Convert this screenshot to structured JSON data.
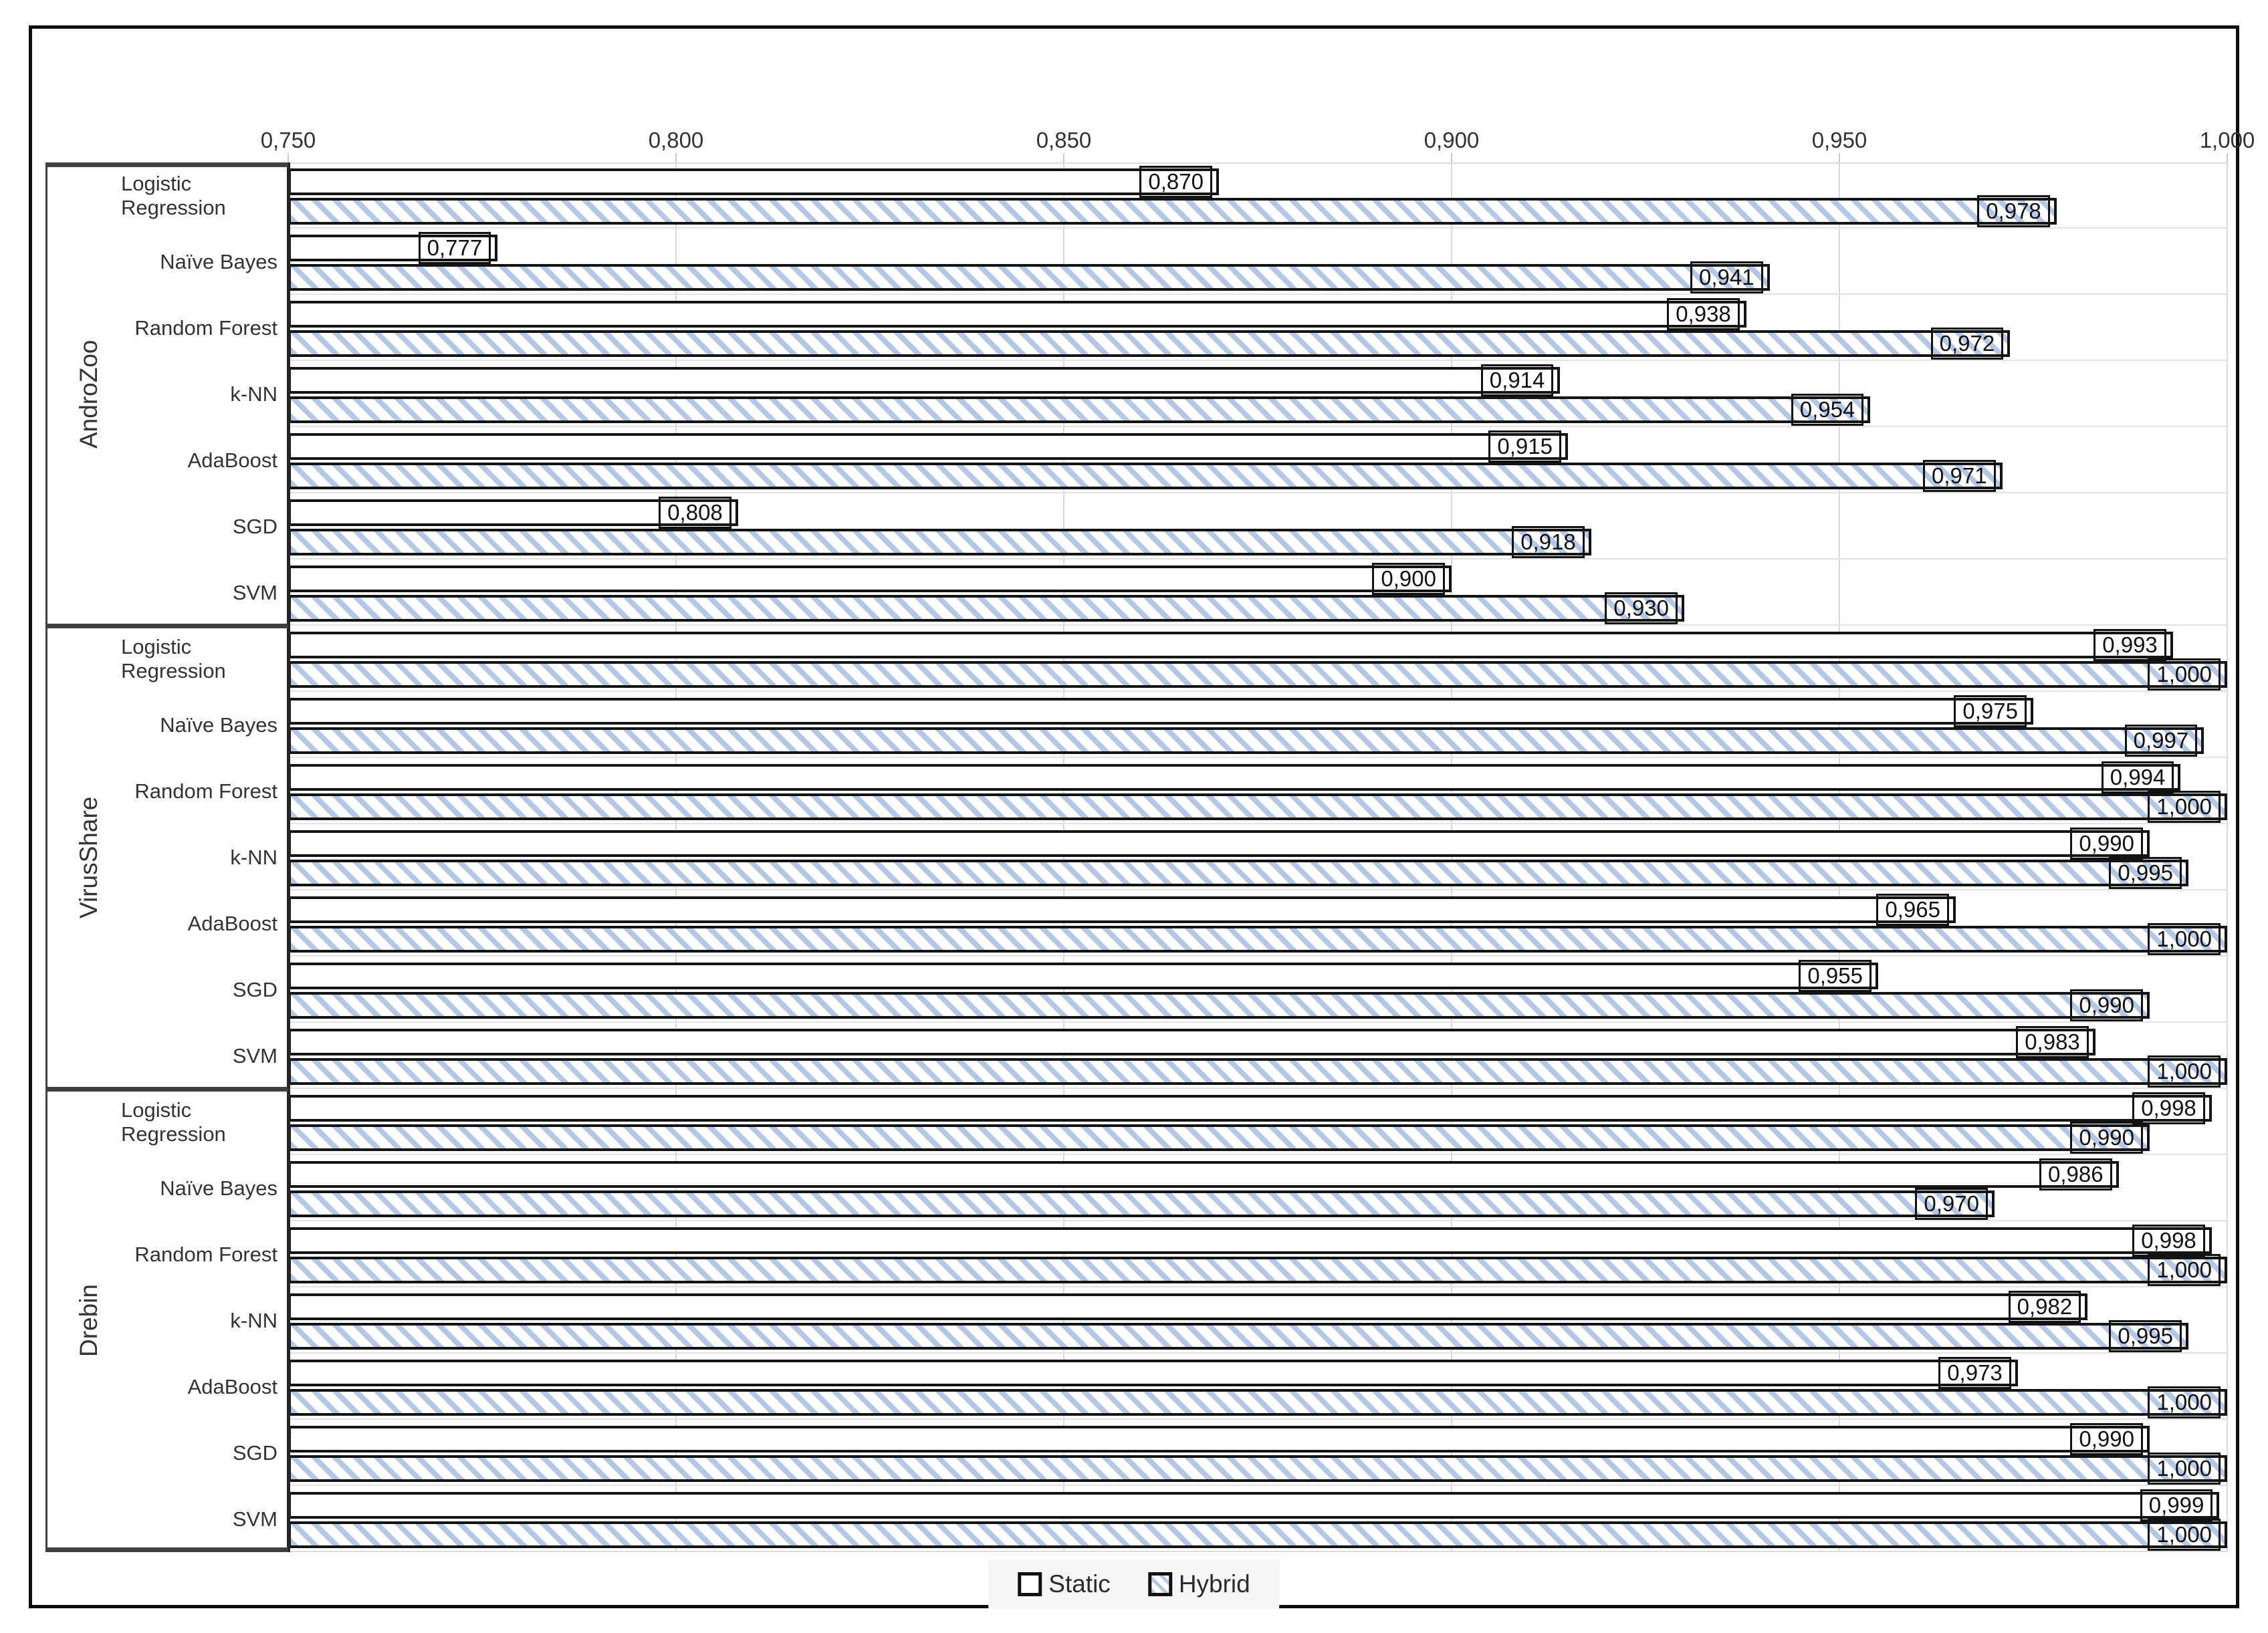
{
  "colors": {
    "hatch_blue": "#b4c7e7",
    "bar_border": "#141414",
    "gridline": "#d9d9d9",
    "row_line": "#e3e3e3",
    "group_divider": "#3f3f3f",
    "category_axis_line": "#262626",
    "frame_border": "#0d0d0d",
    "text": "#333333",
    "legend_background": "#f6f6f6"
  },
  "chart_data": {
    "type": "bar",
    "orientation": "horizontal",
    "value_axis": {
      "position": "top",
      "min": 0.75,
      "max": 1.0,
      "tick_step": 0.05,
      "tick_labels": [
        "0,750",
        "0,800",
        "0,850",
        "0,900",
        "0,950",
        "1,000"
      ],
      "number_format": "comma-decimal",
      "grid": true
    },
    "legend": {
      "position": "bottom",
      "items": [
        {
          "name": "Static",
          "style": "white-fill-black-border"
        },
        {
          "name": "Hybrid",
          "style": "blue-diagonal-hatch"
        }
      ]
    },
    "groups": [
      {
        "label": "AndroZoo",
        "rows": [
          {
            "classifier": "Logistic Regression",
            "static": {
              "value": 0.87,
              "label": "0,870"
            },
            "hybrid": {
              "value": 0.978,
              "label": "0,978"
            }
          },
          {
            "classifier": "Naïve Bayes",
            "static": {
              "value": 0.777,
              "label": "0,777"
            },
            "hybrid": {
              "value": 0.941,
              "label": "0,941"
            }
          },
          {
            "classifier": "Random Forest",
            "static": {
              "value": 0.938,
              "label": "0,938"
            },
            "hybrid": {
              "value": 0.972,
              "label": "0,972"
            }
          },
          {
            "classifier": "k-NN",
            "static": {
              "value": 0.914,
              "label": "0,914"
            },
            "hybrid": {
              "value": 0.954,
              "label": "0,954"
            }
          },
          {
            "classifier": "AdaBoost",
            "static": {
              "value": 0.915,
              "label": "0,915"
            },
            "hybrid": {
              "value": 0.971,
              "label": "0,971"
            }
          },
          {
            "classifier": "SGD",
            "static": {
              "value": 0.808,
              "label": "0,808"
            },
            "hybrid": {
              "value": 0.918,
              "label": "0,918"
            }
          },
          {
            "classifier": "SVM",
            "static": {
              "value": 0.9,
              "label": "0,900"
            },
            "hybrid": {
              "value": 0.93,
              "label": "0,930"
            }
          }
        ]
      },
      {
        "label": "VirusShare",
        "rows": [
          {
            "classifier": "Logistic Regression",
            "static": {
              "value": 0.993,
              "label": "0,993"
            },
            "hybrid": {
              "value": 1.0,
              "label": "1,000"
            }
          },
          {
            "classifier": "Naïve Bayes",
            "static": {
              "value": 0.975,
              "label": "0,975"
            },
            "hybrid": {
              "value": 0.997,
              "label": "0,997"
            }
          },
          {
            "classifier": "Random Forest",
            "static": {
              "value": 0.994,
              "label": "0,994"
            },
            "hybrid": {
              "value": 1.0,
              "label": "1,000"
            }
          },
          {
            "classifier": "k-NN",
            "static": {
              "value": 0.99,
              "label": "0,990"
            },
            "hybrid": {
              "value": 0.995,
              "label": "0,995"
            }
          },
          {
            "classifier": "AdaBoost",
            "static": {
              "value": 0.965,
              "label": "0,965"
            },
            "hybrid": {
              "value": 1.0,
              "label": "1,000"
            }
          },
          {
            "classifier": "SGD",
            "static": {
              "value": 0.955,
              "label": "0,955"
            },
            "hybrid": {
              "value": 0.99,
              "label": "0,990"
            }
          },
          {
            "classifier": "SVM",
            "static": {
              "value": 0.983,
              "label": "0,983"
            },
            "hybrid": {
              "value": 1.0,
              "label": "1,000"
            }
          }
        ]
      },
      {
        "label": "Drebin",
        "rows": [
          {
            "classifier": "Logistic Regression",
            "static": {
              "value": 0.998,
              "label": "0,998"
            },
            "hybrid": {
              "value": 0.99,
              "label": "0,990"
            }
          },
          {
            "classifier": "Naïve Bayes",
            "static": {
              "value": 0.986,
              "label": "0,986"
            },
            "hybrid": {
              "value": 0.97,
              "label": "0,970"
            }
          },
          {
            "classifier": "Random Forest",
            "static": {
              "value": 0.998,
              "label": "0,998"
            },
            "hybrid": {
              "value": 1.0,
              "label": "1,000"
            }
          },
          {
            "classifier": "k-NN",
            "static": {
              "value": 0.982,
              "label": "0,982"
            },
            "hybrid": {
              "value": 0.995,
              "label": "0,995"
            }
          },
          {
            "classifier": "AdaBoost",
            "static": {
              "value": 0.973,
              "label": "0,973"
            },
            "hybrid": {
              "value": 1.0,
              "label": "1,000"
            }
          },
          {
            "classifier": "SGD",
            "static": {
              "value": 0.99,
              "label": "0,990"
            },
            "hybrid": {
              "value": 1.0,
              "label": "1,000"
            }
          },
          {
            "classifier": "SVM",
            "static": {
              "value": 0.999,
              "label": "0,999"
            },
            "hybrid": {
              "value": 1.0,
              "label": "1,000"
            }
          }
        ]
      }
    ]
  }
}
